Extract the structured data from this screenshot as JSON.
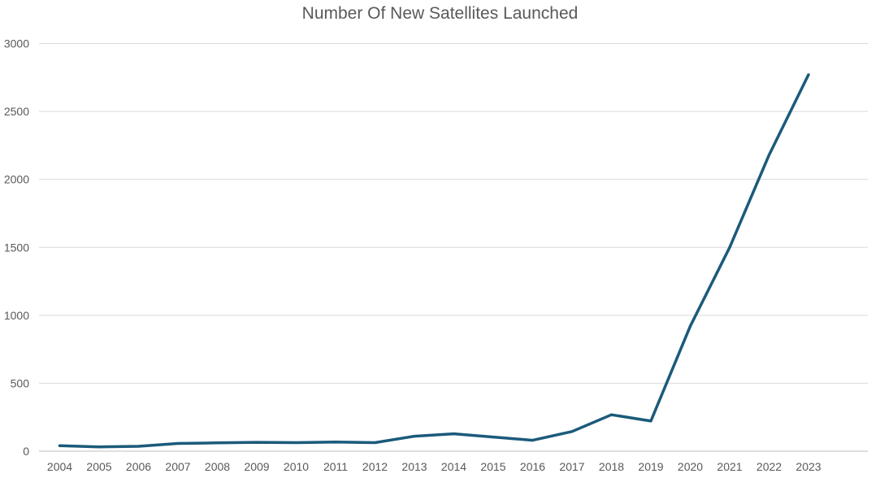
{
  "chart_data": {
    "type": "line",
    "title": "Number Of New Satellites Launched",
    "xlabel": "",
    "ylabel": "",
    "categories": [
      "2004",
      "2005",
      "2006",
      "2007",
      "2008",
      "2009",
      "2010",
      "2011",
      "2012",
      "2013",
      "2014",
      "2015",
      "2016",
      "2017",
      "2018",
      "2019",
      "2020",
      "2021",
      "2022",
      "2023"
    ],
    "series": [
      {
        "values": [
          40,
          32,
          36,
          57,
          61,
          65,
          63,
          67,
          63,
          110,
          128,
          104,
          80,
          145,
          268,
          222,
          920,
          1500,
          2180,
          2770
        ],
        "color": "#1b5a7a"
      }
    ],
    "ylim": [
      0,
      3000
    ],
    "yticks": [
      0,
      500,
      1000,
      1500,
      2000,
      2500,
      3000
    ],
    "grid": true,
    "legend": "none"
  }
}
